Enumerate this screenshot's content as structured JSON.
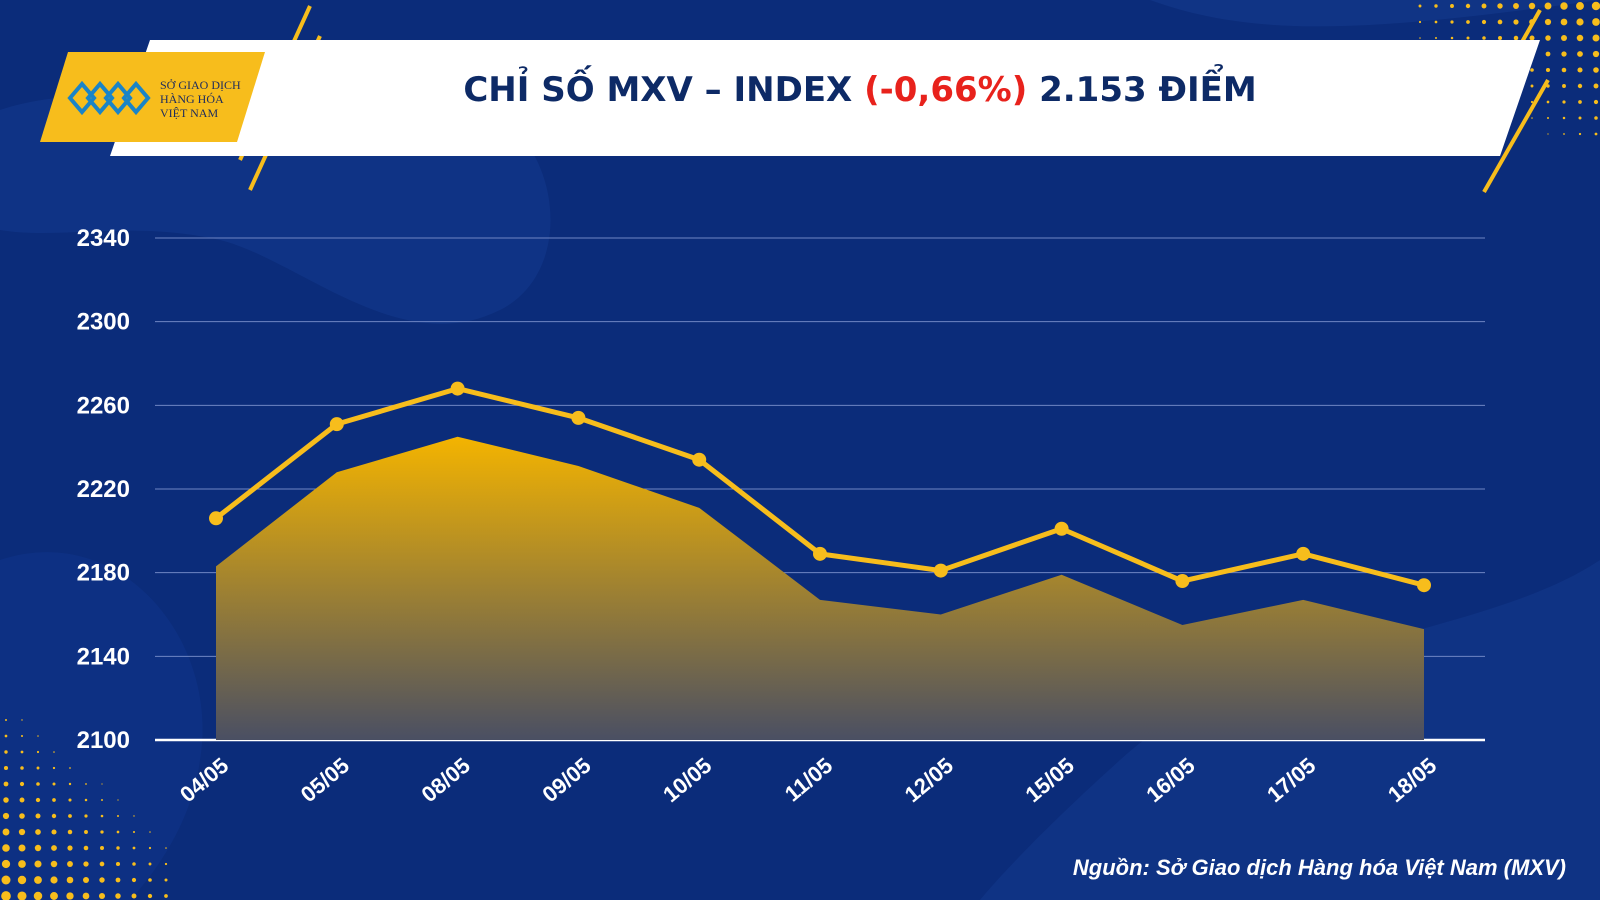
{
  "header": {
    "logo_lines": [
      "SỞ GIAO DỊCH",
      "HÀNG HÓA",
      "VIỆT NAM"
    ],
    "title_main": "CHỈ SỐ MXV – INDEX ",
    "title_pct": "(-0,66%)",
    "title_tail": " 2.153 ĐIỂM"
  },
  "source": "Nguồn: Sở Giao dịch Hàng hóa Việt Nam (MXV)",
  "colors": {
    "background": "#0b2c7a",
    "line": "#f7bd1c",
    "area_top": "#f4b400",
    "area_bottom": "#4a4f63",
    "title": "#0d2a66",
    "negative": "#e8221c"
  },
  "chart_data": {
    "type": "area",
    "title": "CHỈ SỐ MXV – INDEX (-0,66%) 2.153 ĐIỂM",
    "categories": [
      "04/05",
      "05/05",
      "08/05",
      "09/05",
      "10/05",
      "11/05",
      "12/05",
      "15/05",
      "16/05",
      "17/05",
      "18/05"
    ],
    "series": [
      {
        "values": [
          2183,
          2228,
          2245,
          2231,
          2211,
          2167,
          2160,
          2179,
          2155,
          2167,
          2153
        ]
      },
      {
        "values": [
          2206,
          2251,
          2268,
          2254,
          2234,
          2189,
          2181,
          2201,
          2176,
          2189,
          2174
        ]
      }
    ],
    "yticks": [
      2100,
      2140,
      2180,
      2220,
      2260,
      2300,
      2340
    ],
    "ylim": [
      2100,
      2340
    ],
    "grid": true,
    "xlabel": "",
    "ylabel": ""
  }
}
